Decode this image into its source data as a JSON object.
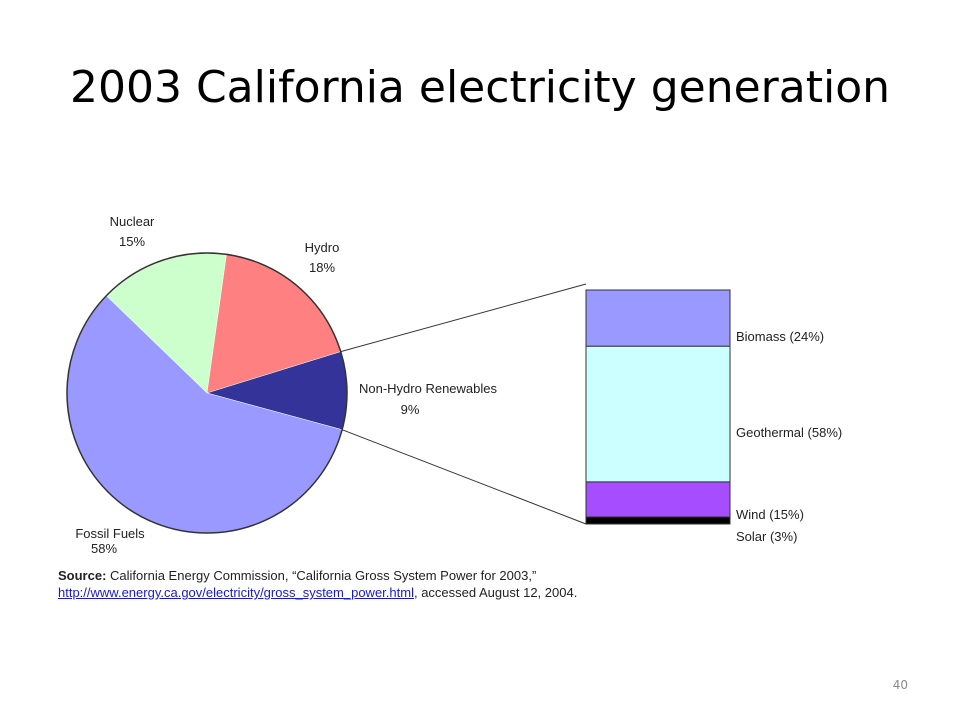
{
  "slide": {
    "title": "2003 California electricity generation",
    "page_number": "40"
  },
  "source": {
    "label": "Source:",
    "text": "California Energy Commission, “California Gross System Power for 2003,”",
    "link": "http://www.energy.ca.gov/electricity/gross_system_power.html",
    "suffix": ", accessed August 12, 2004."
  },
  "chart_data": [
    {
      "type": "pie",
      "categories": [
        "Nuclear",
        "Hydro",
        "Non-Hydro Renewables",
        "Fossil Fuels"
      ],
      "values": [
        15,
        18,
        9,
        58
      ],
      "value_labels": [
        "15%",
        "18%",
        "9%",
        "58%"
      ],
      "colors": [
        "#ccffcc",
        "#ff8080",
        "#333399",
        "#9999ff"
      ],
      "exploded": "Non-Hydro Renewables"
    },
    {
      "type": "bar",
      "stacked": true,
      "categories": [
        "Non-Hydro Renewables"
      ],
      "series": [
        {
          "name": "Solar",
          "values": [
            3
          ],
          "label": "Solar (3%)",
          "color": "#000000"
        },
        {
          "name": "Wind",
          "values": [
            15
          ],
          "label": "Wind (15%)",
          "color": "#a64dff"
        },
        {
          "name": "Geothermal",
          "values": [
            58
          ],
          "label": "Geothermal (58%)",
          "color": "#ccffff"
        },
        {
          "name": "Biomass",
          "values": [
            24
          ],
          "label": "Biomass (24%)",
          "color": "#9999ff"
        }
      ]
    }
  ]
}
